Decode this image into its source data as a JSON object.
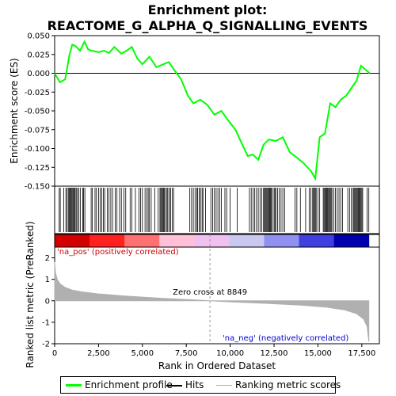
{
  "chart_data": {
    "type": "line",
    "title_line1": "Enrichment plot:",
    "title_line2": "REACTOME_G_ALPHA_Q_SIGNALLING_EVENTS",
    "es_panel": {
      "ylabel": "Enrichment score (ES)",
      "ylim": [
        -0.15,
        0.05
      ],
      "yticks": [
        "-0.150",
        "-0.125",
        "-0.100",
        "-0.075",
        "-0.050",
        "-0.025",
        "0.000",
        "0.025",
        "0.050"
      ],
      "ytick_values": [
        -0.15,
        -0.125,
        -0.1,
        -0.075,
        -0.05,
        -0.025,
        0.0,
        0.025,
        0.05
      ],
      "series_name": "Enrichment profile",
      "color": "#00ff00",
      "x": [
        0,
        300,
        600,
        850,
        1000,
        1200,
        1450,
        1700,
        1900,
        2100,
        2500,
        2800,
        3100,
        3400,
        3800,
        4100,
        4400,
        4700,
        5000,
        5400,
        5800,
        6200,
        6500,
        6800,
        7200,
        7600,
        7900,
        8300,
        8700,
        9100,
        9500,
        9900,
        10300,
        10700,
        11000,
        11300,
        11600,
        11900,
        12200,
        12600,
        13000,
        13400,
        13800,
        14200,
        14600,
        14850,
        15100,
        15400,
        15700,
        16000,
        16300,
        16600,
        16900,
        17200,
        17450,
        17700,
        17950
      ],
      "y": [
        0.0,
        -0.012,
        -0.008,
        0.025,
        0.038,
        0.036,
        0.03,
        0.042,
        0.032,
        0.03,
        0.028,
        0.03,
        0.027,
        0.035,
        0.026,
        0.03,
        0.035,
        0.02,
        0.012,
        0.022,
        0.008,
        0.012,
        0.015,
        0.005,
        -0.008,
        -0.03,
        -0.04,
        -0.035,
        -0.042,
        -0.055,
        -0.05,
        -0.063,
        -0.075,
        -0.095,
        -0.11,
        -0.108,
        -0.115,
        -0.095,
        -0.088,
        -0.09,
        -0.085,
        -0.105,
        -0.112,
        -0.12,
        -0.13,
        -0.14,
        -0.085,
        -0.08,
        -0.04,
        -0.045,
        -0.035,
        -0.03,
        -0.02,
        -0.01,
        0.01,
        0.005,
        0.0
      ]
    },
    "hits": [
      260,
      320,
      520,
      640,
      710,
      780,
      840,
      890,
      930,
      980,
      1030,
      1080,
      1120,
      1170,
      1230,
      1300,
      1380,
      1460,
      1600,
      1650,
      1720,
      2080,
      2150,
      2300,
      2380,
      2500,
      2600,
      2680,
      2770,
      2850,
      3000,
      3100,
      3200,
      3300,
      3450,
      3550,
      3700,
      3800,
      3950,
      4050,
      4300,
      4400,
      4600,
      4800,
      4900,
      5000,
      5150,
      5250,
      5330,
      5400,
      5500,
      5700,
      5900,
      6000,
      6050,
      6100,
      6150,
      6200,
      6250,
      6320,
      6400,
      6450,
      6550,
      6600,
      6700,
      6780,
      7700,
      7800,
      7900,
      8000,
      8100,
      8150,
      8250,
      8300,
      8400,
      8450,
      8600,
      8900,
      9000,
      9100,
      9200,
      9300,
      9400,
      9500,
      9700,
      9800,
      10000,
      10400,
      11100,
      11200,
      11300,
      11400,
      11500,
      11600,
      11700,
      11800,
      11900,
      11950,
      12000,
      12050,
      12100,
      12150,
      12200,
      12250,
      12300,
      12350,
      12400,
      12500,
      12550,
      12600,
      12700,
      12800,
      12900,
      13000,
      13100,
      13700,
      13800,
      14000,
      14300,
      14500,
      14600,
      14700,
      14750,
      14800,
      14850,
      14900,
      15000,
      15100,
      15300,
      15350,
      15400,
      15450,
      15500,
      15550,
      15600,
      15650,
      15700,
      15750,
      15800,
      15900,
      16000,
      16100,
      16200,
      16300,
      16400,
      16700,
      16800,
      16900,
      17000,
      17050,
      17100,
      17150,
      17200,
      17250,
      17300,
      17350,
      17400,
      17450,
      17500,
      17550,
      17800,
      17900
    ],
    "heatmap_colors": [
      "#d40000",
      "#ff2020",
      "#ff7070",
      "#ffc0d8",
      "#f0c0f0",
      "#c8c8f0",
      "#9090f0",
      "#4040e0",
      "#0000b0"
    ],
    "rank_panel": {
      "ylabel": "Ranked list metric (PreRanked)",
      "ylim": [
        -2.0,
        2.5
      ],
      "yticks": [
        "-2",
        "-1",
        "0",
        "1",
        "2"
      ],
      "ytick_values": [
        -2,
        -1,
        0,
        1,
        2
      ],
      "color": "#b0b0b0",
      "x": [
        0,
        50,
        150,
        300,
        600,
        1000,
        1500,
        2500,
        4000,
        6000,
        8000,
        8849,
        10000,
        12000,
        14000,
        15500,
        16500,
        17200,
        17600,
        17800,
        17900
      ],
      "y": [
        1.8,
        1.3,
        1.0,
        0.8,
        0.62,
        0.5,
        0.42,
        0.32,
        0.22,
        0.12,
        0.04,
        0.0,
        -0.05,
        -0.12,
        -0.2,
        -0.3,
        -0.42,
        -0.6,
        -0.85,
        -1.2,
        -1.9
      ],
      "zero_cross_label": "Zero cross at 8849",
      "zero_cross_x": 8849,
      "pos_label": "'na_pos' (positively correlated)",
      "neg_label": "'na_neg' (negatively correlated)"
    },
    "xlabel": "Rank in Ordered Dataset",
    "xlim": [
      0,
      18500
    ],
    "xticks": [
      "0",
      "2,500",
      "5,000",
      "7,500",
      "10,000",
      "12,500",
      "15,000",
      "17,500"
    ],
    "xtick_values": [
      0,
      2500,
      5000,
      7500,
      10000,
      12500,
      15000,
      17500
    ],
    "n_genes": 17900
  },
  "legend": {
    "enrichment_label": "Enrichment profile",
    "hits_label": "Hits",
    "metric_label": "Ranking metric scores"
  }
}
